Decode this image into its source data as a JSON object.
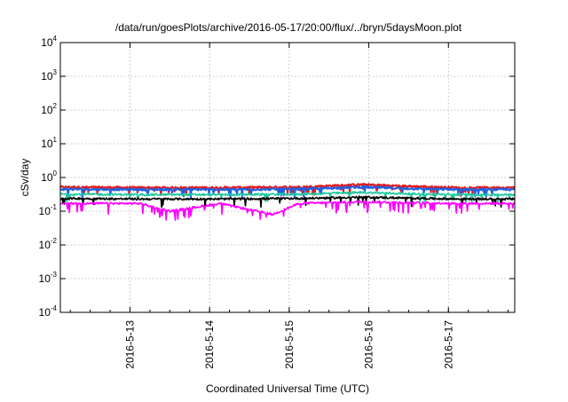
{
  "chart_data": {
    "type": "line",
    "title": "/data/run/goesPlots/archive/2016-05-17/20:00/flux/../bryn/5daysMoon.plot",
    "xlabel": "Coordinated Universal Time (UTC)",
    "ylabel": "cSv/day",
    "xlim": [
      "2016-05-12 03:00",
      "2016-05-17 20:00"
    ],
    "ylim": [
      0.0001,
      10000
    ],
    "yscale": "log",
    "grid": true,
    "legend": "none",
    "x_ticks": [
      "2016-5-13",
      "2016-5-14",
      "2016-5-15",
      "2016-5-16",
      "2016-5-17"
    ],
    "y_ticks": [
      {
        "base": "10",
        "exp": "-4"
      },
      {
        "base": "10",
        "exp": "-3"
      },
      {
        "base": "10",
        "exp": "-2"
      },
      {
        "base": "10",
        "exp": "-1"
      },
      {
        "base": "10",
        "exp": "0"
      },
      {
        "base": "10",
        "exp": "1"
      },
      {
        "base": "10",
        "exp": "2"
      },
      {
        "base": "10",
        "exp": "3"
      },
      {
        "base": "10",
        "exp": "4"
      }
    ],
    "series": [
      {
        "color": "#e41a1c",
        "x": [
          "2016-05-12 03:00",
          "2016-05-13 03:00",
          "2016-05-14 03:00",
          "2016-05-15 03:00",
          "2016-05-15 22:00",
          "2016-05-16 12:00",
          "2016-05-17 03:00",
          "2016-05-17 20:00"
        ],
        "y": [
          0.52,
          0.5,
          0.5,
          0.52,
          0.62,
          0.55,
          0.5,
          0.5
        ]
      },
      {
        "color": "#2060e0",
        "x": [
          "2016-05-12 03:00",
          "2016-05-13 03:00",
          "2016-05-14 03:00",
          "2016-05-15 03:00",
          "2016-05-15 22:00",
          "2016-05-16 12:00",
          "2016-05-17 03:00",
          "2016-05-17 20:00"
        ],
        "y": [
          0.45,
          0.44,
          0.44,
          0.45,
          0.52,
          0.47,
          0.44,
          0.44
        ]
      },
      {
        "color": "#20c8a0",
        "x": [
          "2016-05-12 03:00",
          "2016-05-13 03:00",
          "2016-05-14 03:00",
          "2016-05-15 03:00",
          "2016-05-15 22:00",
          "2016-05-16 12:00",
          "2016-05-17 03:00",
          "2016-05-17 20:00"
        ],
        "y": [
          0.32,
          0.31,
          0.31,
          0.32,
          0.36,
          0.33,
          0.31,
          0.31
        ]
      },
      {
        "color": "#000000",
        "x": [
          "2016-05-12 03:00",
          "2016-05-13 03:00",
          "2016-05-14 03:00",
          "2016-05-15 03:00",
          "2016-05-15 22:00",
          "2016-05-16 12:00",
          "2016-05-17 03:00",
          "2016-05-17 20:00"
        ],
        "y": [
          0.24,
          0.23,
          0.23,
          0.24,
          0.26,
          0.245,
          0.23,
          0.23
        ]
      },
      {
        "color": "#ff00ff",
        "x": [
          "2016-05-12 03:00",
          "2016-05-13 03:00",
          "2016-05-13 12:00",
          "2016-05-14 03:00",
          "2016-05-14 19:00",
          "2016-05-15 03:00",
          "2016-05-15 22:00",
          "2016-05-16 12:00",
          "2016-05-17 03:00",
          "2016-05-17 20:00"
        ],
        "y": [
          0.17,
          0.17,
          0.1,
          0.17,
          0.08,
          0.17,
          0.19,
          0.18,
          0.17,
          0.17
        ]
      }
    ]
  }
}
